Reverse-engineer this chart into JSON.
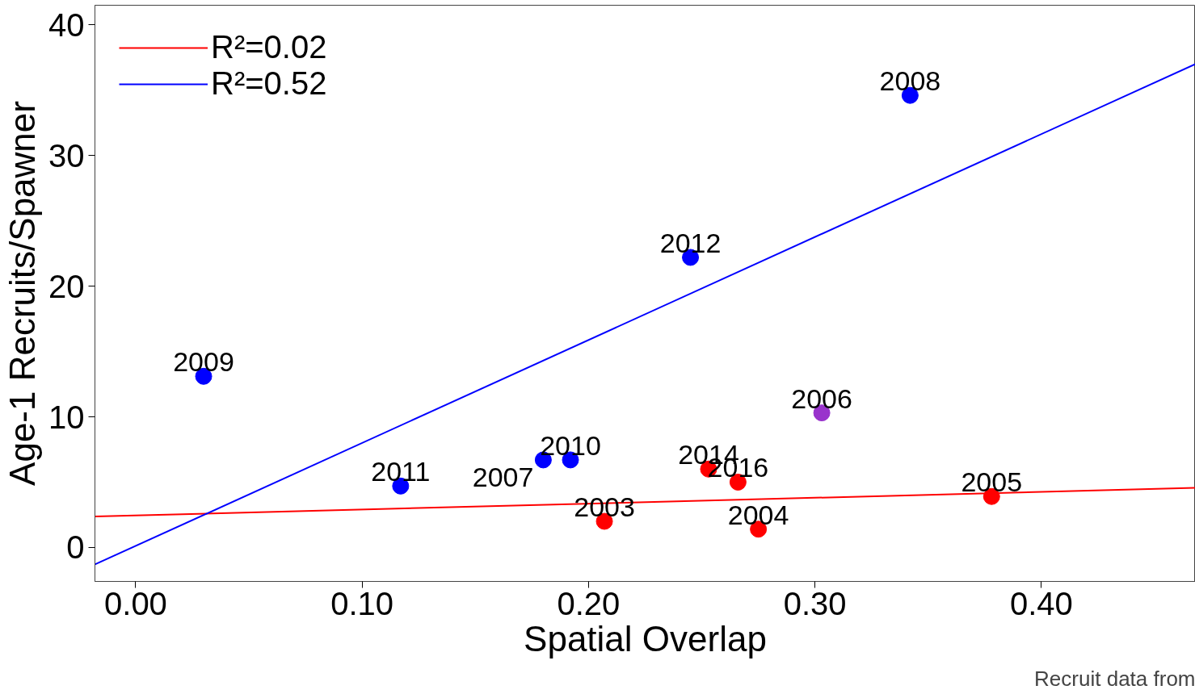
{
  "chart_data": {
    "type": "scatter",
    "xlabel": "Spatial Overlap",
    "ylabel": "Age-1 Recruits/Spawner",
    "xlim": [
      -0.018,
      0.468
    ],
    "ylim": [
      -2.6,
      41.5
    ],
    "xticks": [
      {
        "value": 0,
        "label": "0.00"
      },
      {
        "value": 0.1,
        "label": "0.10"
      },
      {
        "value": 0.2,
        "label": "0.20"
      },
      {
        "value": 0.3,
        "label": "0.30"
      },
      {
        "value": 0.4,
        "label": "0.40"
      }
    ],
    "yticks": [
      0,
      10,
      20,
      30,
      40
    ],
    "grid": false,
    "legend": "top left",
    "series": [
      {
        "marker": "circle",
        "x": [
          0.03,
          0.117,
          0.18,
          0.192,
          0.245,
          0.342,
          0.303,
          0.207,
          0.253,
          0.266,
          0.275,
          0.378
        ],
        "values": [
          13.1,
          4.7,
          6.7,
          6.7,
          22.2,
          34.6,
          10.3,
          2.0,
          6.0,
          5.0,
          1.4,
          3.9
        ],
        "colors": [
          "#0000ff",
          "#0000ff",
          "#0000ff",
          "#0000ff",
          "#0000ff",
          "#0000ff",
          "#9933cc",
          "#ff0000",
          "#ff0000",
          "#ff0000",
          "#ff0000",
          "#ff0000"
        ]
      },
      {
        "type": "line",
        "name": "R²=0.02",
        "color": "#ff0000",
        "x": [
          -0.018,
          0.468
        ],
        "values": [
          2.37,
          4.56
        ]
      },
      {
        "type": "line",
        "name": "R²=0.52",
        "color": "#0000ff",
        "x": [
          -0.018,
          0.468
        ],
        "values": [
          -1.3,
          37.0
        ]
      }
    ],
    "annotations": [
      {
        "text": "2009",
        "x": 0.03,
        "y": 13.1
      },
      {
        "text": "2011",
        "x": 0.117,
        "y": 4.7
      },
      {
        "text": "2007",
        "x": 0.18,
        "y": 6.7
      },
      {
        "text": "2010",
        "x": 0.192,
        "y": 6.7
      },
      {
        "text": "2012",
        "x": 0.245,
        "y": 22.2
      },
      {
        "text": "2008",
        "x": 0.342,
        "y": 34.6
      },
      {
        "text": "2006",
        "x": 0.303,
        "y": 10.3
      },
      {
        "text": "2003",
        "x": 0.207,
        "y": 2.0
      },
      {
        "text": "2014",
        "x": 0.253,
        "y": 6.0
      },
      {
        "text": "2016",
        "x": 0.266,
        "y": 5.0
      },
      {
        "text": "2004",
        "x": 0.275,
        "y": 1.4
      },
      {
        "text": "2005",
        "x": 0.378,
        "y": 3.9
      },
      "Recruit data from"
    ]
  }
}
